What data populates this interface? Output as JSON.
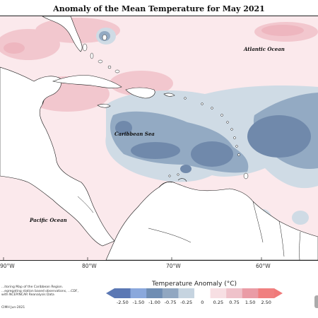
{
  "title": "Anomaly of the Mean Temperature for May 2021",
  "ocean_labels": {
    "atlantic": "Atlantic Ocean",
    "caribbean": "Caribbean Sea",
    "pacific": "Pacific Ocean"
  },
  "longitude_labels": [
    "90°W",
    "80°W",
    "70°W",
    "60°W"
  ],
  "legend": {
    "title": "Temperature Anomaly (°C)",
    "bins": [
      {
        "label": "-2.50",
        "color": "#5b78b4"
      },
      {
        "label": "-1.50",
        "color": "#8aa8dc"
      },
      {
        "label": "-1.00",
        "color": "#6f8db3"
      },
      {
        "label": "-0.75",
        "color": "#91a7c1"
      },
      {
        "label": "-0.25",
        "color": "#c6d4e0"
      },
      {
        "label": "0",
        "color": "#ffffff"
      },
      {
        "label": "0.25",
        "color": "#f7dfe3"
      },
      {
        "label": "0.75",
        "color": "#efc2ca"
      },
      {
        "label": "1.50",
        "color": "#ea9ca6"
      },
      {
        "label": "2.50",
        "color": "#f08080"
      }
    ]
  },
  "footnote": "...itoring Map of the Caribbean Region. ...egregating station based observations, ...CDF, with NCEP/NCAR Reanalysis Data",
  "credit": "CIMH Jun-2021",
  "colors": {
    "warm_light": "#f9e3e7",
    "warm_mid": "#f0c4cc",
    "cool_light": "#cbd8e3",
    "cool_mid": "#8ea5bf",
    "cool_dark": "#6b86a8",
    "land_outline": "#1a1a1a"
  }
}
